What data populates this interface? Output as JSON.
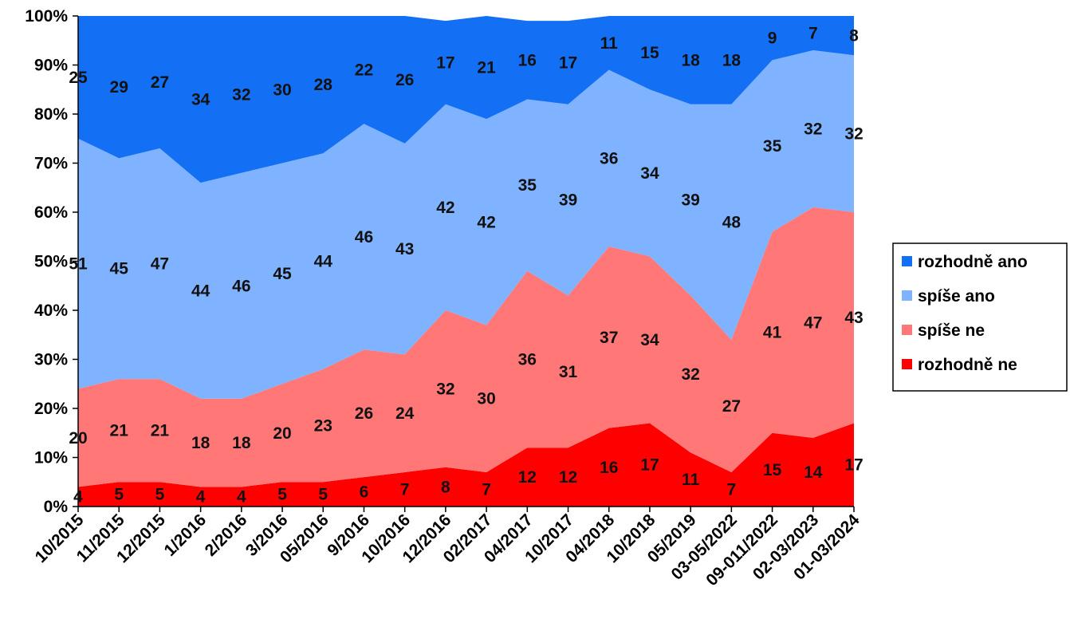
{
  "chart_data": {
    "type": "area",
    "stacked": true,
    "normalized": true,
    "categories": [
      "10/2015",
      "11/2015",
      "12/2015",
      "1/2016",
      "2/2016",
      "3/2016",
      "05/2016",
      "9/2016",
      "10/2016",
      "12/2016",
      "02/2017",
      "04/2017",
      "10/2017",
      "04/2018",
      "10/2018",
      "05/2019",
      "03-05/2022",
      "09-011/2022",
      "02-03/2023",
      "01-03/2024"
    ],
    "series": [
      {
        "name": "rozhodně ne",
        "color": "#ff0000",
        "values": [
          4,
          5,
          5,
          4,
          4,
          5,
          5,
          6,
          7,
          8,
          7,
          12,
          12,
          16,
          17,
          11,
          7,
          15,
          14,
          17
        ]
      },
      {
        "name": "spíše ne",
        "color": "#ff7777",
        "values": [
          20,
          21,
          21,
          18,
          18,
          20,
          23,
          26,
          24,
          32,
          30,
          36,
          31,
          37,
          34,
          32,
          27,
          41,
          47,
          43
        ]
      },
      {
        "name": "spíše ano",
        "color": "#7fb2ff",
        "values": [
          51,
          45,
          47,
          44,
          46,
          45,
          44,
          46,
          43,
          42,
          42,
          35,
          39,
          36,
          34,
          39,
          48,
          35,
          32,
          32
        ]
      },
      {
        "name": "rozhodně ano",
        "color": "#1370f5",
        "values": [
          25,
          29,
          27,
          34,
          32,
          30,
          28,
          22,
          26,
          17,
          21,
          16,
          17,
          11,
          15,
          18,
          18,
          9,
          7,
          8
        ]
      }
    ],
    "y_ticks": [
      "0%",
      "10%",
      "20%",
      "30%",
      "40%",
      "50%",
      "60%",
      "70%",
      "80%",
      "90%",
      "100%"
    ],
    "ylim": [
      0,
      100
    ],
    "legend_position": "right",
    "legend_order": [
      "rozhodně ano",
      "spíše ano",
      "spíše ne",
      "rozhodně ne"
    ],
    "grid": false
  }
}
